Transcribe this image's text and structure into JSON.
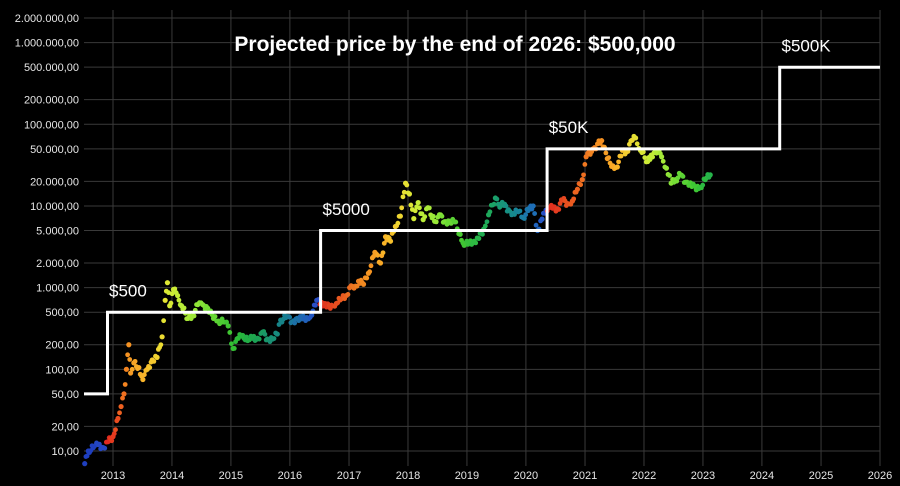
{
  "chart_data": {
    "type": "scatter",
    "title": "Projected price by the end of 2026: $500,000",
    "y_scale": "log",
    "ylim": [
      7,
      2000000
    ],
    "xlim": [
      "2012-07-01",
      "2026-01-01"
    ],
    "grid": true,
    "y_ticks": [
      {
        "value": 10,
        "label": "10,00"
      },
      {
        "value": 20,
        "label": "20,00"
      },
      {
        "value": 50,
        "label": "50,00"
      },
      {
        "value": 100,
        "label": "100,00"
      },
      {
        "value": 200,
        "label": "200,00"
      },
      {
        "value": 500,
        "label": "500,00"
      },
      {
        "value": 1000,
        "label": "1.000,00"
      },
      {
        "value": 2000,
        "label": "2.000,00"
      },
      {
        "value": 5000,
        "label": "5.000,00"
      },
      {
        "value": 10000,
        "label": "10.000,00"
      },
      {
        "value": 20000,
        "label": "20.000,00"
      },
      {
        "value": 50000,
        "label": "50.000,00"
      },
      {
        "value": 100000,
        "label": "100.000,00"
      },
      {
        "value": 200000,
        "label": "200.000,00"
      },
      {
        "value": 500000,
        "label": "500.000,00"
      },
      {
        "value": 1000000,
        "label": "1.000.000,00"
      },
      {
        "value": 2000000,
        "label": "2.000.000,00"
      }
    ],
    "x_ticks": [
      {
        "value": "2013-01-01",
        "label": "2013"
      },
      {
        "value": "2014-01-01",
        "label": "2014"
      },
      {
        "value": "2015-01-01",
        "label": "2015"
      },
      {
        "value": "2016-01-01",
        "label": "2016"
      },
      {
        "value": "2017-01-01",
        "label": "2017"
      },
      {
        "value": "2018-01-01",
        "label": "2018"
      },
      {
        "value": "2019-01-01",
        "label": "2019"
      },
      {
        "value": "2020-01-01",
        "label": "2020"
      },
      {
        "value": "2021-01-01",
        "label": "2021"
      },
      {
        "value": "2022-01-01",
        "label": "2022"
      },
      {
        "value": "2023-01-01",
        "label": "2023"
      },
      {
        "value": "2024-01-01",
        "label": "2024"
      },
      {
        "value": "2025-01-01",
        "label": "2025"
      },
      {
        "value": "2026-01-01",
        "label": "2026"
      }
    ],
    "step_line": [
      [
        "2012-07-01",
        50
      ],
      [
        "2012-11-28",
        50
      ],
      [
        "2012-11-28",
        500
      ],
      [
        "2016-07-09",
        500
      ],
      [
        "2016-07-09",
        5000
      ],
      [
        "2020-05-11",
        5000
      ],
      [
        "2020-05-11",
        50000
      ],
      [
        "2024-04-20",
        50000
      ],
      [
        "2024-04-20",
        500000
      ],
      [
        "2026-01-01",
        500000
      ]
    ],
    "annotations": [
      {
        "text": "$500",
        "x": "2012-12-01",
        "y": 780
      },
      {
        "text": "$5000",
        "x": "2016-07-15",
        "y": 7800
      },
      {
        "text": "$50K",
        "x": "2020-05-15",
        "y": 78000
      },
      {
        "text": "$500K",
        "x": "2024-04-25",
        "y": 780000
      }
    ],
    "price_series": [
      [
        "2012-07-10",
        7,
        "#1f3fbf"
      ],
      [
        "2012-08-01",
        10,
        "#1f3fbf"
      ],
      [
        "2012-09-01",
        11,
        "#1f3fbf"
      ],
      [
        "2012-10-01",
        12,
        "#2446c4"
      ],
      [
        "2012-11-01",
        11,
        "#2446c4"
      ],
      [
        "2012-12-01",
        13,
        "#e02a1f"
      ],
      [
        "2013-01-01",
        15,
        "#e53a1f"
      ],
      [
        "2013-02-01",
        25,
        "#ea4d20"
      ],
      [
        "2013-02-20",
        35,
        "#ee6020"
      ],
      [
        "2013-03-10",
        50,
        "#f07020"
      ],
      [
        "2013-03-25",
        100,
        "#f48420"
      ],
      [
        "2013-04-09",
        200,
        "#f59222"
      ],
      [
        "2013-04-20",
        90,
        "#f59a24"
      ],
      [
        "2013-05-10",
        120,
        "#f7a526"
      ],
      [
        "2013-06-10",
        105,
        "#f7ac28"
      ],
      [
        "2013-07-05",
        75,
        "#f9b42a"
      ],
      [
        "2013-08-01",
        100,
        "#f8be2c"
      ],
      [
        "2013-09-01",
        130,
        "#f5c82e"
      ],
      [
        "2013-10-01",
        140,
        "#f2d230"
      ],
      [
        "2013-11-01",
        250,
        "#ecdc32"
      ],
      [
        "2013-11-20",
        700,
        "#e5e433"
      ],
      [
        "2013-12-04",
        1150,
        "#dfe834"
      ],
      [
        "2013-12-18",
        600,
        "#d6ea35"
      ],
      [
        "2014-01-10",
        950,
        "#cdec36"
      ],
      [
        "2014-02-05",
        800,
        "#c4ee37"
      ],
      [
        "2014-03-01",
        600,
        "#b8ec38"
      ],
      [
        "2014-04-10",
        420,
        "#aaea38"
      ],
      [
        "2014-05-10",
        450,
        "#9ee838"
      ],
      [
        "2014-06-10",
        620,
        "#92e637"
      ],
      [
        "2014-07-10",
        620,
        "#84e236"
      ],
      [
        "2014-08-10",
        560,
        "#76de35"
      ],
      [
        "2014-09-15",
        420,
        "#68d834"
      ],
      [
        "2014-10-15",
        390,
        "#5ad233"
      ],
      [
        "2014-11-15",
        380,
        "#4ccc32"
      ],
      [
        "2014-12-15",
        340,
        "#40c632"
      ],
      [
        "2015-01-14",
        180,
        "#34c033"
      ],
      [
        "2015-02-15",
        240,
        "#2cba38"
      ],
      [
        "2015-03-15",
        260,
        "#26b43e"
      ],
      [
        "2015-04-15",
        225,
        "#22ae46"
      ],
      [
        "2015-05-15",
        240,
        "#1fa84e"
      ],
      [
        "2015-06-15",
        240,
        "#1ca256"
      ],
      [
        "2015-07-15",
        285,
        "#1a9c60"
      ],
      [
        "2015-08-15",
        235,
        "#19966a"
      ],
      [
        "2015-09-15",
        235,
        "#189074"
      ],
      [
        "2015-10-15",
        270,
        "#178a7e"
      ],
      [
        "2015-11-05",
        400,
        "#178488"
      ],
      [
        "2015-12-15",
        440,
        "#187e92"
      ],
      [
        "2016-01-15",
        380,
        "#1a789c"
      ],
      [
        "2016-02-15",
        420,
        "#1c70a6"
      ],
      [
        "2016-03-15",
        415,
        "#1e68b0"
      ],
      [
        "2016-04-15",
        430,
        "#2060ba"
      ],
      [
        "2016-05-15",
        460,
        "#2256c2"
      ],
      [
        "2016-06-15",
        700,
        "#2a4ec6"
      ],
      [
        "2016-07-15",
        660,
        "#e0301f"
      ],
      [
        "2016-08-15",
        580,
        "#e23a1f"
      ],
      [
        "2016-09-15",
        610,
        "#e44420"
      ],
      [
        "2016-10-15",
        640,
        "#e64e20"
      ],
      [
        "2016-11-15",
        730,
        "#e85820"
      ],
      [
        "2016-12-15",
        800,
        "#ea6220"
      ],
      [
        "2017-01-05",
        1000,
        "#ec6c20"
      ],
      [
        "2017-02-01",
        990,
        "#ee7620"
      ],
      [
        "2017-03-01",
        1200,
        "#f08020"
      ],
      [
        "2017-04-01",
        1100,
        "#f28a21"
      ],
      [
        "2017-05-01",
        1500,
        "#f49422"
      ],
      [
        "2017-06-10",
        2700,
        "#f69e24"
      ],
      [
        "2017-07-15",
        2000,
        "#f8a826"
      ],
      [
        "2017-08-15",
        4200,
        "#f9b428"
      ],
      [
        "2017-09-15",
        3700,
        "#f6c02c"
      ],
      [
        "2017-10-15",
        5600,
        "#f2cc30"
      ],
      [
        "2017-11-15",
        7500,
        "#eed632"
      ],
      [
        "2017-12-17",
        19000,
        "#e6e034"
      ],
      [
        "2018-01-10",
        14000,
        "#dde635"
      ],
      [
        "2018-02-06",
        7000,
        "#d2ea36"
      ],
      [
        "2018-03-05",
        11000,
        "#c6ec37"
      ],
      [
        "2018-04-05",
        6800,
        "#b8ec38"
      ],
      [
        "2018-05-05",
        9500,
        "#aaea38"
      ],
      [
        "2018-06-15",
        6500,
        "#9ae838"
      ],
      [
        "2018-07-15",
        7800,
        "#8ae437"
      ],
      [
        "2018-08-15",
        6400,
        "#7ade36"
      ],
      [
        "2018-09-15",
        6500,
        "#6ad835"
      ],
      [
        "2018-10-15",
        6400,
        "#5ad234"
      ],
      [
        "2018-11-20",
        4500,
        "#4ccc33"
      ],
      [
        "2018-12-15",
        3300,
        "#40c634"
      ],
      [
        "2019-01-15",
        3600,
        "#36c03a"
      ],
      [
        "2019-02-15",
        3700,
        "#2eba42"
      ],
      [
        "2019-03-15",
        4000,
        "#28b44a"
      ],
      [
        "2019-04-15",
        5200,
        "#22ae52"
      ],
      [
        "2019-05-15",
        7800,
        "#1ea85c"
      ],
      [
        "2019-06-26",
        12500,
        "#1ba266"
      ],
      [
        "2019-07-15",
        10500,
        "#199c70"
      ],
      [
        "2019-08-15",
        10200,
        "#18967a"
      ],
      [
        "2019-09-15",
        9000,
        "#179084"
      ],
      [
        "2019-10-15",
        8100,
        "#178a8e"
      ],
      [
        "2019-11-15",
        8500,
        "#188498"
      ],
      [
        "2019-12-15",
        7200,
        "#1a7ea2"
      ],
      [
        "2020-01-15",
        8800,
        "#1c76ac"
      ],
      [
        "2020-02-15",
        10000,
        "#1e6eb6"
      ],
      [
        "2020-03-13",
        5000,
        "#2264be"
      ],
      [
        "2020-04-10",
        6900,
        "#2658c4"
      ],
      [
        "2020-05-05",
        8900,
        "#2a4cc6"
      ],
      [
        "2020-05-20",
        9500,
        "#e0281f"
      ],
      [
        "2020-06-15",
        9400,
        "#e2321f"
      ],
      [
        "2020-07-15",
        9200,
        "#e43c20"
      ],
      [
        "2020-08-15",
        11800,
        "#e64620"
      ],
      [
        "2020-09-15",
        10700,
        "#e85020"
      ],
      [
        "2020-10-15",
        11500,
        "#ea5a20"
      ],
      [
        "2020-11-15",
        16000,
        "#ec6420"
      ],
      [
        "2020-12-15",
        21000,
        "#ee6e20"
      ],
      [
        "2021-01-08",
        40000,
        "#f07820"
      ],
      [
        "2021-02-20",
        50000,
        "#f28421"
      ],
      [
        "2021-04-14",
        63000,
        "#f49022"
      ],
      [
        "2021-05-19",
        38000,
        "#f69c24"
      ],
      [
        "2021-06-22",
        31000,
        "#f8a826"
      ],
      [
        "2021-07-20",
        30000,
        "#f9b428"
      ],
      [
        "2021-08-20",
        48000,
        "#f6c02c"
      ],
      [
        "2021-09-15",
        46000,
        "#f2cc30"
      ],
      [
        "2021-10-20",
        64000,
        "#ecd832"
      ],
      [
        "2021-11-10",
        68000,
        "#e4e034"
      ],
      [
        "2021-12-10",
        48000,
        "#dae635"
      ],
      [
        "2022-01-24",
        35000,
        "#ceea36"
      ],
      [
        "2022-02-15",
        42000,
        "#c2ec37"
      ],
      [
        "2022-03-28",
        47000,
        "#b4ec38"
      ],
      [
        "2022-04-20",
        40000,
        "#a6ea38"
      ],
      [
        "2022-05-20",
        29000,
        "#96e638"
      ],
      [
        "2022-06-18",
        19000,
        "#86e237"
      ],
      [
        "2022-07-15",
        21000,
        "#76de36"
      ],
      [
        "2022-08-15",
        24000,
        "#66d835"
      ],
      [
        "2022-09-15",
        19500,
        "#58d234"
      ],
      [
        "2022-10-15",
        19200,
        "#4acc33"
      ],
      [
        "2022-11-21",
        15800,
        "#3ec634"
      ],
      [
        "2022-12-15",
        16800,
        "#34c03a"
      ],
      [
        "2023-01-15",
        21000,
        "#2cba42"
      ],
      [
        "2023-02-15",
        24000,
        "#26b44a"
      ]
    ]
  }
}
